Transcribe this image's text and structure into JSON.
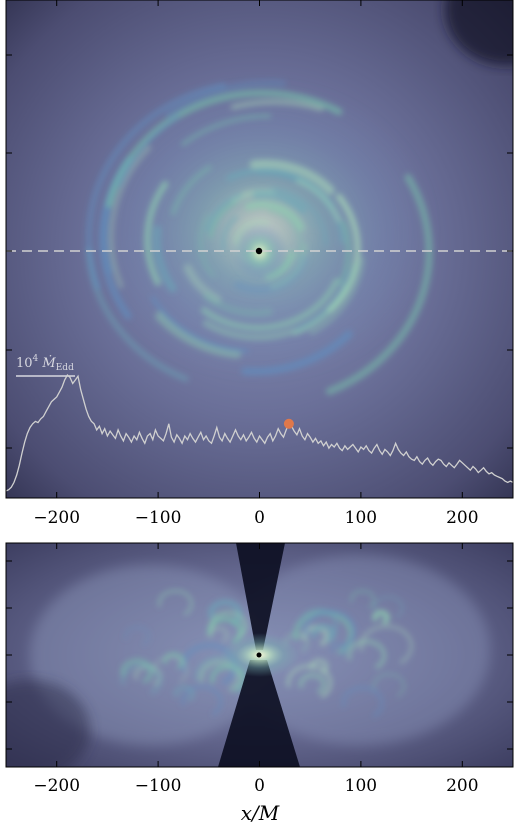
{
  "chart_data": [
    {
      "type": "heatmap",
      "panel": "top",
      "xlim": [
        -250,
        250
      ],
      "xticks": [
        -200,
        -100,
        0,
        100,
        200
      ],
      "xtick_labels": [
        "−200",
        "−100",
        "0",
        "100",
        "200"
      ],
      "hotspot_center": [
        0,
        0
      ],
      "black_hole_marker": [
        0,
        0
      ],
      "colors": {
        "background": "#4a4b6e",
        "mid": "#6f7fa6",
        "turbulence": "#6fb7a8",
        "core": "#f3f6d6",
        "dashed_line": "#d2d2d2",
        "curve": "#d0d0d0",
        "marker": "#e0784a"
      },
      "inset_series": {
        "type": "line",
        "name": "accretion rate",
        "scale_bar_label": "10⁴ Ṁ_Edd",
        "scale_bar_value": 10000,
        "current_time_marker_index": 106,
        "values": [
          0.05,
          0.06,
          0.08,
          0.12,
          0.18,
          0.26,
          0.36,
          0.45,
          0.52,
          0.57,
          0.6,
          0.62,
          0.61,
          0.64,
          0.66,
          0.7,
          0.74,
          0.78,
          0.8,
          0.82,
          0.86,
          0.9,
          0.96,
          1.0,
          0.98,
          0.93,
          0.96,
          0.99,
          0.88,
          0.8,
          0.72,
          0.66,
          0.62,
          0.6,
          0.55,
          0.58,
          0.52,
          0.56,
          0.5,
          0.54,
          0.51,
          0.48,
          0.55,
          0.5,
          0.46,
          0.52,
          0.49,
          0.45,
          0.5,
          0.47,
          0.53,
          0.48,
          0.44,
          0.5,
          0.52,
          0.47,
          0.55,
          0.5,
          0.48,
          0.46,
          0.52,
          0.6,
          0.49,
          0.45,
          0.51,
          0.48,
          0.44,
          0.5,
          0.47,
          0.52,
          0.48,
          0.45,
          0.49,
          0.53,
          0.47,
          0.5,
          0.46,
          0.44,
          0.5,
          0.57,
          0.49,
          0.46,
          0.52,
          0.48,
          0.45,
          0.5,
          0.55,
          0.5,
          0.47,
          0.51,
          0.46,
          0.49,
          0.53,
          0.48,
          0.45,
          0.5,
          0.47,
          0.44,
          0.49,
          0.52,
          0.46,
          0.5,
          0.56,
          0.52,
          0.49,
          0.55,
          0.6,
          0.58,
          0.54,
          0.51,
          0.56,
          0.5,
          0.47,
          0.52,
          0.49,
          0.45,
          0.48,
          0.44,
          0.46,
          0.42,
          0.45,
          0.4,
          0.43,
          0.41,
          0.44,
          0.4,
          0.38,
          0.42,
          0.39,
          0.41,
          0.43,
          0.4,
          0.37,
          0.41,
          0.39,
          0.42,
          0.38,
          0.36,
          0.4,
          0.43,
          0.38,
          0.35,
          0.39,
          0.37,
          0.34,
          0.38,
          0.44,
          0.39,
          0.36,
          0.34,
          0.37,
          0.33,
          0.31,
          0.3,
          0.33,
          0.29,
          0.27,
          0.3,
          0.32,
          0.28,
          0.26,
          0.29,
          0.31,
          0.3,
          0.27,
          0.25,
          0.28,
          0.26,
          0.24,
          0.27,
          0.3,
          0.28,
          0.26,
          0.24,
          0.22,
          0.25,
          0.23,
          0.2,
          0.22,
          0.24,
          0.21,
          0.19,
          0.2,
          0.18,
          0.17,
          0.16,
          0.15,
          0.13,
          0.12,
          0.13,
          0.12
        ]
      }
    },
    {
      "type": "heatmap",
      "panel": "bottom",
      "xlim": [
        -250,
        250
      ],
      "xticks": [
        -200,
        -100,
        0,
        100,
        200
      ],
      "xtick_labels": [
        "−200",
        "−100",
        "0",
        "100",
        "200"
      ],
      "xlabel": "x/M",
      "colors": {
        "background": "#4e4f72",
        "funnel": "#0a0c1e",
        "turbulence": "#6fb7a8",
        "core": "#f3f6d6"
      }
    }
  ]
}
